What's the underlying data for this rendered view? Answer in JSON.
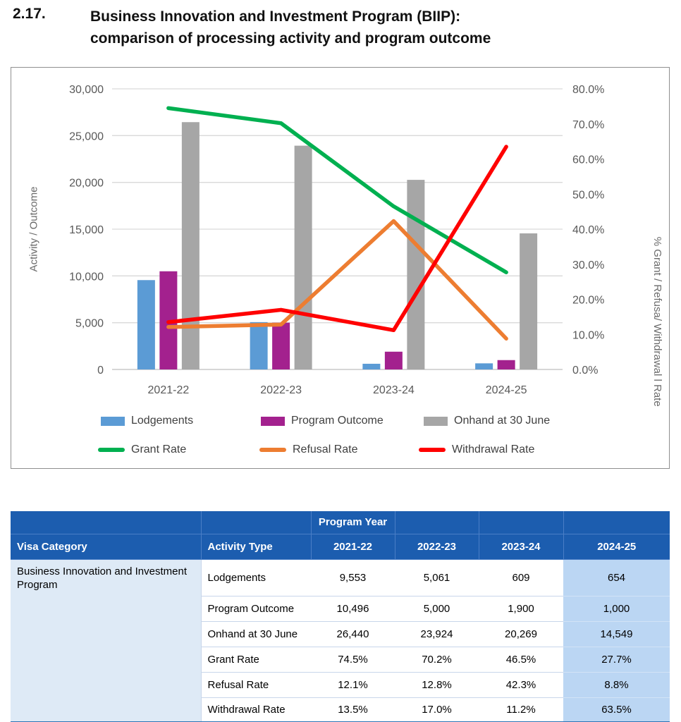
{
  "page": {
    "section_number": "2.17.",
    "title_line1": "Business Innovation and Investment Program (BIIP):",
    "title_line2": "comparison of processing activity and program outcome"
  },
  "chart_data": {
    "type": "combo-bar-line",
    "categories": [
      "2021-22",
      "2022-23",
      "2023-24",
      "2024-25"
    ],
    "bar_series": [
      {
        "name": "Lodgements",
        "color": "#5B9BD5",
        "values": [
          9553,
          5061,
          609,
          654
        ]
      },
      {
        "name": "Program Outcome",
        "color": "#A3218E",
        "values": [
          10496,
          5000,
          1900,
          1000
        ]
      },
      {
        "name": "Onhand at 30 June",
        "color": "#A6A6A6",
        "values": [
          26440,
          23924,
          20269,
          14549
        ]
      }
    ],
    "line_series": [
      {
        "name": "Grant Rate",
        "color": "#00B050",
        "values": [
          74.5,
          70.2,
          46.5,
          27.7
        ]
      },
      {
        "name": "Refusal Rate",
        "color": "#ED7D31",
        "values": [
          12.1,
          12.8,
          42.3,
          8.8
        ]
      },
      {
        "name": "Withdrawal Rate",
        "color": "#FF0000",
        "values": [
          13.5,
          17.0,
          11.2,
          63.5
        ]
      }
    ],
    "left_axis": {
      "title": "Activity / Outcome",
      "min": 0,
      "max": 30000,
      "step": 5000,
      "tick_labels": [
        "0",
        "5,000",
        "10,000",
        "15,000",
        "20,000",
        "25,000",
        "30,000"
      ]
    },
    "right_axis": {
      "title": "% Grant / Refusa/ Withdrawal l Rate",
      "min": 0,
      "max": 80,
      "step": 10,
      "tick_labels": [
        "0.0%",
        "10.0%",
        "20.0%",
        "30.0%",
        "40.0%",
        "50.0%",
        "60.0%",
        "70.0%",
        "80.0%"
      ]
    },
    "grid": "horizontal",
    "legend_position": "bottom"
  },
  "table": {
    "header": {
      "program_year": "Program Year",
      "visa_category": "Visa Category",
      "activity_type": "Activity Type",
      "years": [
        "2021-22",
        "2022-23",
        "2023-24",
        "2024-25"
      ]
    },
    "visa_category_value": "Business Innovation and Investment Program",
    "rows": [
      {
        "label": "Lodgements",
        "values": [
          "9,553",
          "5,061",
          "609",
          "654"
        ]
      },
      {
        "label": "Program Outcome",
        "values": [
          "10,496",
          "5,000",
          "1,900",
          "1,000"
        ]
      },
      {
        "label": "Onhand at 30 June",
        "values": [
          "26,440",
          "23,924",
          "20,269",
          "14,549"
        ]
      },
      {
        "label": "Grant Rate",
        "values": [
          "74.5%",
          "70.2%",
          "46.5%",
          "27.7%"
        ]
      },
      {
        "label": "Refusal Rate",
        "values": [
          "12.1%",
          "12.8%",
          "42.3%",
          "8.8%"
        ]
      },
      {
        "label": "Withdrawal Rate",
        "values": [
          "13.5%",
          "17.0%",
          "11.2%",
          "63.5%"
        ]
      }
    ],
    "colors": {
      "header_bg": "#1C5DAF",
      "highlight_column_bg": "#BBD6F3",
      "category_column_bg": "#DEEAF6",
      "bottom_border": "#2E75B6"
    }
  }
}
